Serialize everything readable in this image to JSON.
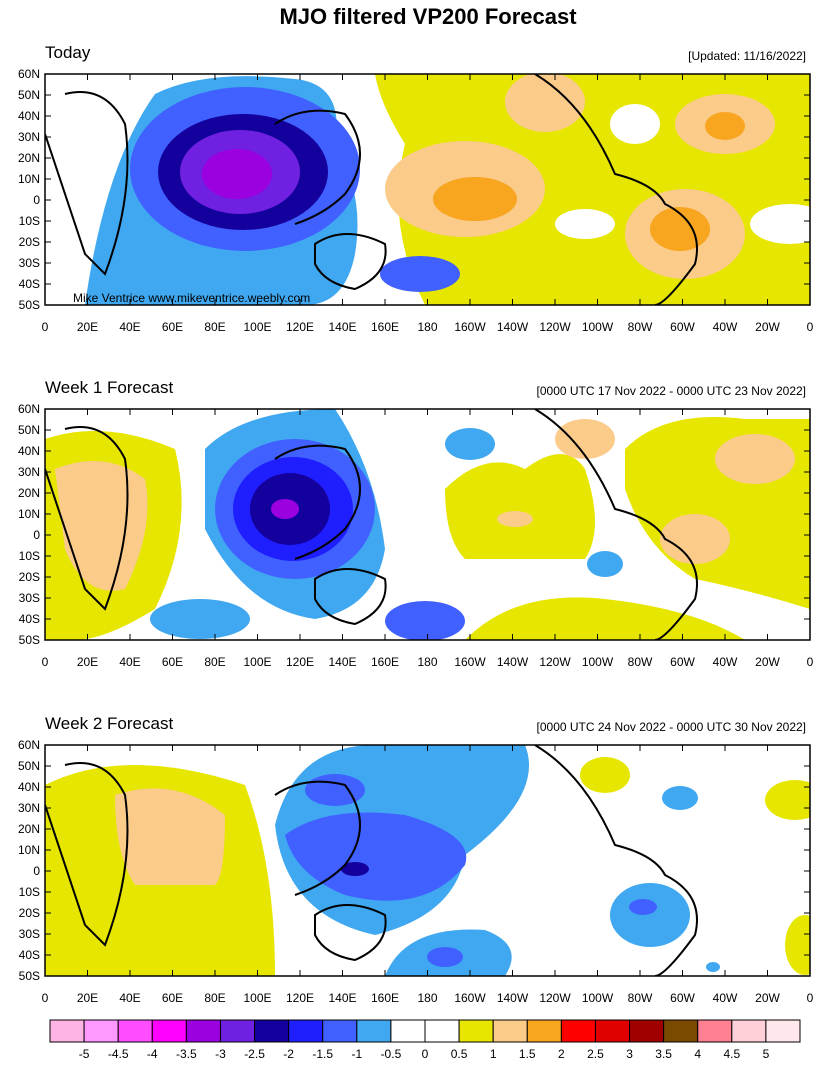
{
  "title": "MJO filtered VP200 Forecast",
  "watermark": "Mike Ventrice www.mikeventrice.weebly.com",
  "panels": [
    {
      "title": "Today",
      "date": "[Updated: 11/16/2022]"
    },
    {
      "title": "Week 1 Forecast",
      "date": "[0000 UTC 17 Nov 2022 - 0000 UTC 23 Nov 2022]"
    },
    {
      "title": "Week 2 Forecast",
      "date": "[0000 UTC 24 Nov 2022 - 0000 UTC 30 Nov 2022]"
    }
  ],
  "lat_labels": [
    "60N",
    "50N",
    "40N",
    "30N",
    "20N",
    "10N",
    "0",
    "10S",
    "20S",
    "30S",
    "40S",
    "50S"
  ],
  "lon_labels": [
    "0",
    "20E",
    "40E",
    "60E",
    "80E",
    "100E",
    "120E",
    "140E",
    "160E",
    "180",
    "160W",
    "140W",
    "120W",
    "100W",
    "80W",
    "60W",
    "40W",
    "20W",
    "0"
  ],
  "colorbar": {
    "colors": [
      "#ffb4e6",
      "#ff99ff",
      "#ff4dff",
      "#ff00ff",
      "#9b00e0",
      "#7020e0",
      "#14009c",
      "#1e1eff",
      "#4060ff",
      "#40a8f0",
      "#ffffff",
      "#ffffff",
      "#e6e600",
      "#fbcb8a",
      "#f8a520",
      "#ff0000",
      "#e00000",
      "#a00000",
      "#7a4a00",
      "#ff8090",
      "#ffd0d8",
      "#ffe8ec"
    ],
    "labels": [
      -5,
      -4.5,
      -4,
      -3.5,
      -3,
      -2.5,
      -2,
      -1.5,
      -1,
      -0.5,
      0,
      0.5,
      1,
      1.5,
      2,
      2.5,
      3,
      3.5,
      4,
      4.5,
      5
    ]
  }
}
